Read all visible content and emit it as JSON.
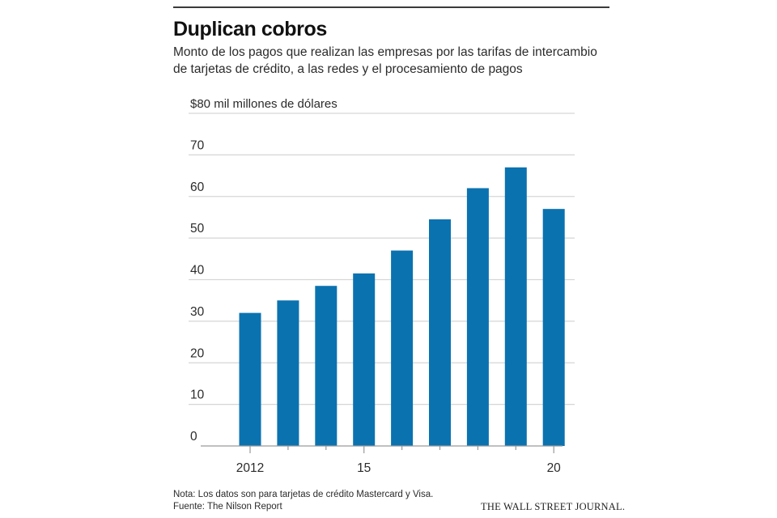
{
  "header": {
    "title": "Duplican cobros",
    "subtitle": "Monto de los pagos que realizan las empresas por las tarifas de intercambio de tarjetas de crédito, a las redes y el procesamiento de pagos"
  },
  "footer": {
    "note": "Nota: Los datos son para tarjetas de crédito Mastercard y Visa.",
    "source": "Fuente: The Nilson Report",
    "brand": "THE WALL STREET JOURNAL."
  },
  "colors": {
    "bar": "#0b72b0",
    "gridline": "#d6d6d6",
    "axis": "#9a9a9a"
  },
  "chart_data": {
    "type": "bar",
    "title": "Duplican cobros",
    "ylabel": "$80 mil millones de dólares",
    "ylim": [
      0,
      80
    ],
    "yticks": [
      0,
      10,
      20,
      30,
      40,
      50,
      60,
      70,
      80
    ],
    "ytick_labels": [
      "0",
      "10",
      "20",
      "30",
      "40",
      "50",
      "60",
      "70",
      "$80 mil millones de dólares"
    ],
    "grid": true,
    "categories": [
      "2012",
      "2013",
      "2014",
      "2015",
      "2016",
      "2017",
      "2018",
      "2019",
      "2020"
    ],
    "x_tick_labels": [
      "2012",
      "",
      "",
      "15",
      "",
      "",
      "",
      "",
      "20"
    ],
    "values": [
      32,
      35,
      38.5,
      41.5,
      47,
      54.5,
      62,
      67,
      57
    ]
  }
}
